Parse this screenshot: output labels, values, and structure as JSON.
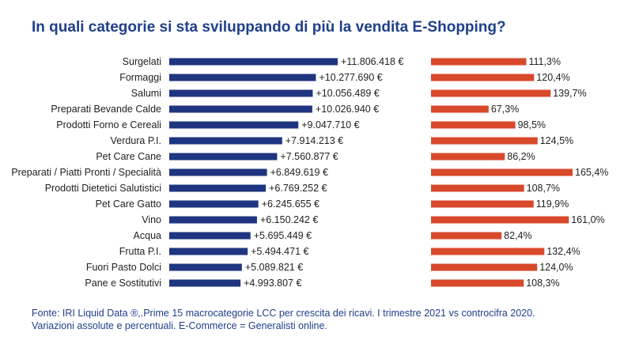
{
  "title": "In quali categorie si sta sviluppando di più la vendita E-Shopping?",
  "footnote": {
    "line1": "Fonte: IRI Liquid Data ®,.Prime 15 macrocategorie LCC per crescita dei ricavi. I trimestre 2021 vs controcifra 2020.",
    "line2": "Variazioni assolute e percentuali. E-Commerce = Generalisti online."
  },
  "colors": {
    "absolute": "#1f3580",
    "percent": "#d8492b",
    "title": "#1f3f8a"
  },
  "chart_data": {
    "type": "bar",
    "orientation": "horizontal",
    "categories": [
      "Surgelati",
      "Formaggi",
      "Salumi",
      "Preparati Bevande Calde",
      "Prodotti Forno e Cereali",
      "Verdura P.I.",
      "Pet Care Cane",
      "Preparati / Piatti Pronti / Specialità",
      "Prodotti Dietetici Salutistici",
      "Pet Care Gatto",
      "Vino",
      "Acqua",
      "Frutta P.I.",
      "Fuori Pasto Dolci",
      "Pane e Sostitutivi"
    ],
    "series": [
      {
        "values": [
          11806418,
          10277690,
          10056489,
          10026940,
          9047710,
          7914213,
          7560877,
          6849619,
          6769252,
          6245655,
          6150242,
          5695449,
          5494471,
          5089821,
          4993807
        ],
        "labels": [
          "+11.806.418 €",
          "+10.277.690 €",
          "+10.056.489 €",
          "+10.026.940 €",
          "+9.047.710 €",
          "+7.914.213 €",
          "+7.560.877 €",
          "+6.849.619 €",
          "+6.769.252 €",
          "+6.245.655 €",
          "+6.150.242 €",
          "+5.695.449 €",
          "+5.494.471 €",
          "+5.089.821 €",
          "+4.993.807 €"
        ]
      },
      {
        "values": [
          111.3,
          120.4,
          139.7,
          67.3,
          98.5,
          124.5,
          86.2,
          165.4,
          108.7,
          119.9,
          161.0,
          82.4,
          132.4,
          124.0,
          108.3
        ],
        "labels": [
          "111,3%",
          "120,4%",
          "139,7%",
          "67,3%",
          "98,5%",
          "124,5%",
          "86,2%",
          "165,4%",
          "108,7%",
          "119,9%",
          "161,0%",
          "82,4%",
          "132,4%",
          "124,0%",
          "108,3%"
        ]
      }
    ],
    "grid": false,
    "legend": "none"
  }
}
